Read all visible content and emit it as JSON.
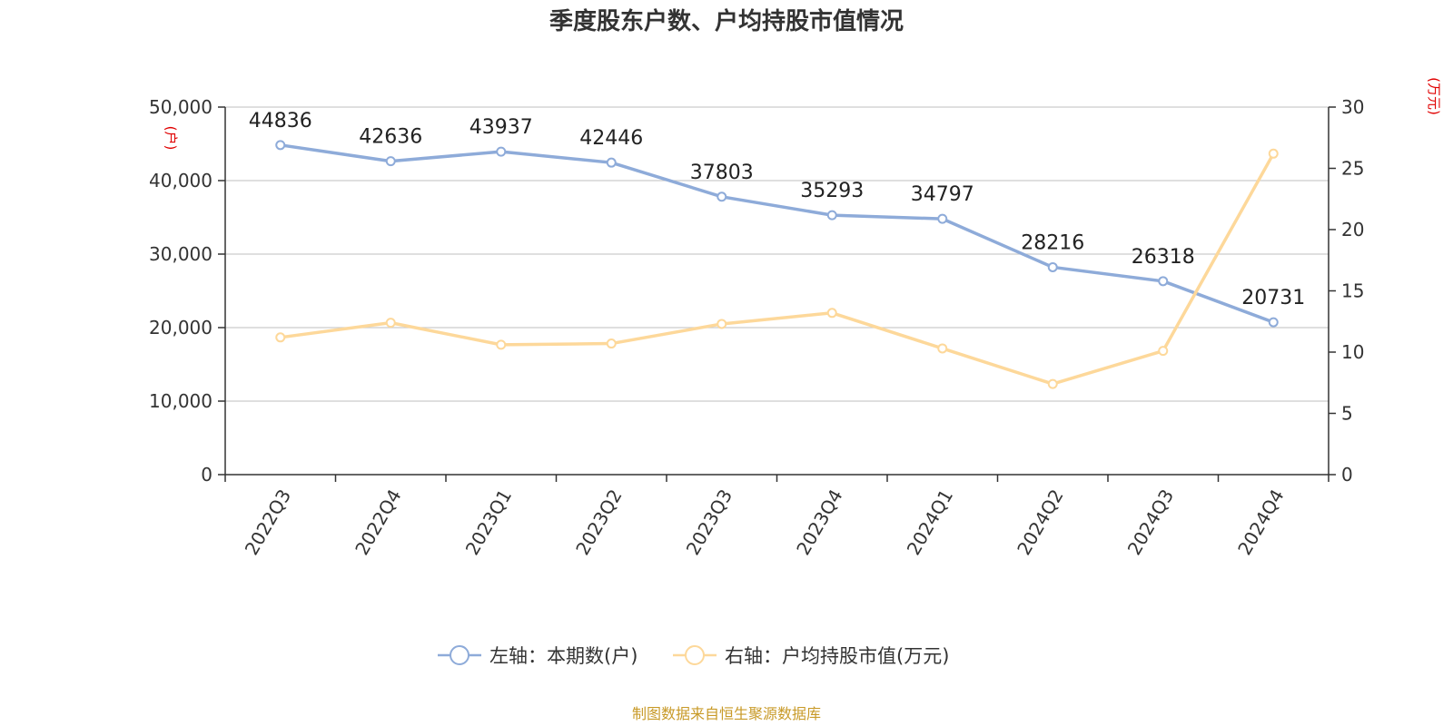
{
  "chart_data": {
    "type": "line",
    "title": "季度股东户数、户均持股市值情况",
    "categories": [
      "2022Q3",
      "2022Q4",
      "2023Q1",
      "2023Q2",
      "2023Q3",
      "2023Q4",
      "2024Q1",
      "2024Q2",
      "2024Q3",
      "2024Q4"
    ],
    "left_axis": {
      "unit": "(户)",
      "ylim": [
        0,
        50000
      ],
      "ticks": [
        "0",
        "10,000",
        "20,000",
        "30,000",
        "40,000",
        "50,000"
      ]
    },
    "right_axis": {
      "unit": "(万元)",
      "ylim": [
        0,
        30
      ],
      "ticks": [
        "0",
        "5",
        "10",
        "15",
        "20",
        "25",
        "30"
      ]
    },
    "grid": true,
    "legend_position": "bottom",
    "series": [
      {
        "name": "左轴：本期数(户)",
        "axis": "left",
        "color": "#8eabd9",
        "values": [
          44836,
          42636,
          43937,
          42446,
          37803,
          35293,
          34797,
          28216,
          26318,
          20731
        ],
        "labels": [
          "44836",
          "42636",
          "43937",
          "42446",
          "37803",
          "35293",
          "34797",
          "28216",
          "26318",
          "20731"
        ]
      },
      {
        "name": "右轴：户均持股市值(万元)",
        "axis": "right",
        "color": "#fdd89a",
        "values": [
          11.2,
          12.4,
          10.6,
          10.7,
          12.3,
          13.2,
          10.3,
          7.4,
          10.1,
          26.2
        ]
      }
    ]
  },
  "footer": {
    "source": "制图数据来自恒生聚源数据库"
  }
}
